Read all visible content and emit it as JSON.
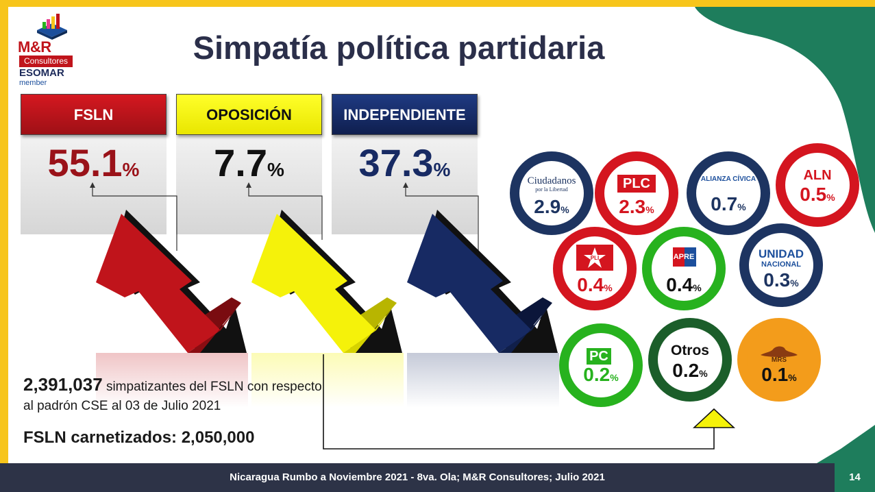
{
  "header": {
    "title": "Simpatía política partidaria",
    "logo": {
      "name": "M&R",
      "sub": "Consultores",
      "esomar": "ESOMAR",
      "member": "member"
    }
  },
  "colors": {
    "frame": "#f7c51b",
    "fsln": "#c0141b",
    "oposicion": "#f5f20a",
    "independiente": "#172a63",
    "accent_green": "#1e7d5c",
    "footer": "#2d3347"
  },
  "chart_data": [
    {
      "type": "bar",
      "categories": [
        "FSLN",
        "OPOSICIÓN",
        "INDEPENDIENTE"
      ],
      "values": [
        55.1,
        7.7,
        37.3
      ],
      "value_labels": [
        "55.1",
        "7.7",
        "37.3"
      ],
      "unit": "%"
    },
    {
      "type": "pie",
      "categories": [
        "Ciudadanos por la Libertad",
        "PLC",
        "ALIANZA CÍVICA",
        "ALN",
        "PLI",
        "APRE",
        "UNIDAD NACIONAL",
        "PC",
        "Otros",
        "MRS"
      ],
      "values": [
        2.9,
        2.3,
        0.7,
        0.5,
        0.4,
        0.4,
        0.3,
        0.2,
        0.2,
        0.1
      ],
      "unit": "%"
    }
  ],
  "summary": {
    "count": "2,391,037",
    "count_text": "simpatizantes del FSLN con respecto al padrón CSE al 03 de Julio 2021",
    "carnetizados": "FSLN carnetizados: 2,050,000"
  },
  "parties": [
    {
      "tag": "Ciudadanos",
      "tag2": "por la Libertad",
      "pct": "2.9",
      "unit": "%",
      "ring": "#1d3461",
      "text": "#1d3461"
    },
    {
      "tag": "PLC",
      "pct": "2.3",
      "unit": "%",
      "ring": "#d4151f",
      "text": "#d4151f"
    },
    {
      "tag": "ALIANZA CÍVICA",
      "pct": "0.7",
      "unit": "%",
      "ring": "#1d3461",
      "text": "#1d3461"
    },
    {
      "tag": "ALN",
      "pct": "0.5",
      "unit": "%",
      "ring": "#d4151f",
      "text": "#d4151f"
    },
    {
      "tag": "PLI",
      "pct": "0.4",
      "unit": "%",
      "ring": "#d4151f",
      "text": "#d4151f"
    },
    {
      "tag": "APRE",
      "pct": "0.4",
      "unit": "%",
      "ring": "#27b21e",
      "text": "#111111"
    },
    {
      "tag": "UNIDAD",
      "tag2": "NACIONAL",
      "pct": "0.3",
      "unit": "%",
      "ring": "#1d3461",
      "text": "#1d3461"
    },
    {
      "tag": "PC",
      "pct": "0.2",
      "unit": "%",
      "ring": "#27b21e",
      "text": "#27b21e"
    },
    {
      "tag": "Otros",
      "pct": "0.2",
      "unit": "%",
      "ring": "#1b5e2a",
      "text": "#111111"
    },
    {
      "tag": "MRS",
      "pct": "0.1",
      "unit": "%",
      "ring": "#f39c1b",
      "text": "#111111"
    }
  ],
  "footer": {
    "text": "Nicaragua Rumbo a Noviembre 2021 -  8va. Ola; M&R Consultores; Julio 2021",
    "page": "14"
  }
}
